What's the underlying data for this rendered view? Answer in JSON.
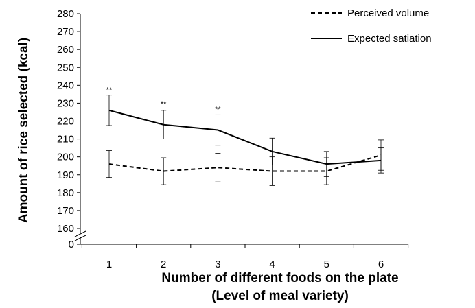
{
  "chart_data": {
    "type": "line",
    "x": [
      1,
      2,
      3,
      4,
      5,
      6
    ],
    "xlabel_line1": "Number of different foods on the plate",
    "xlabel_line2": "(Level of meal variety)",
    "ylabel": "Amount of rice selected (kcal)",
    "ylim": [
      160,
      280
    ],
    "y_ticks": [
      280,
      270,
      260,
      250,
      240,
      230,
      220,
      210,
      200,
      190,
      180,
      170,
      160
    ],
    "y_break_label": "0",
    "axis_break": true,
    "grid": false,
    "legend_position": "top-right",
    "series": [
      {
        "name": "Perceived volume",
        "style": "dashed",
        "values": [
          196,
          192,
          194,
          192,
          192,
          201
        ],
        "error": [
          7.5,
          7.5,
          8,
          8,
          7.5,
          8.5
        ]
      },
      {
        "name": "Expected satiation",
        "style": "solid",
        "values": [
          226,
          218,
          215,
          203,
          196,
          198
        ],
        "error": [
          8.5,
          8,
          8.5,
          7.5,
          7,
          7
        ]
      }
    ],
    "annotations": [
      {
        "x": 1,
        "y": 235,
        "text": "**"
      },
      {
        "x": 2,
        "y": 227,
        "text": "**"
      },
      {
        "x": 3,
        "y": 224,
        "text": "**"
      }
    ]
  }
}
